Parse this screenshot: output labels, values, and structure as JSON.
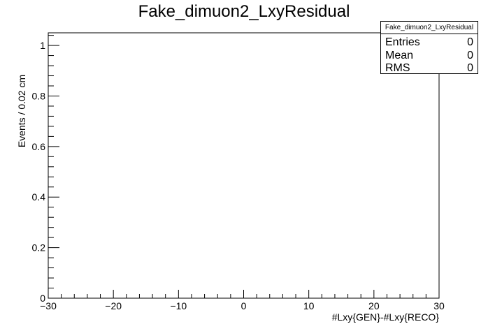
{
  "chart_data": {
    "type": "bar",
    "title": "Fake_dimuon2_LxyResidual",
    "xlabel": "#Lxy{GEN}-#Lxy{RECO}",
    "ylabel": "Events / 0.02 cm",
    "xlim": [
      -30,
      30
    ],
    "ylim": [
      0,
      1.05
    ],
    "xticks": [
      -30,
      -20,
      -10,
      0,
      10,
      20,
      30
    ],
    "xtick_labels": [
      "−30",
      "−20",
      "−10",
      "0",
      "10",
      "20",
      "30"
    ],
    "yticks": [
      0,
      0.2,
      0.4,
      0.6,
      0.8,
      1
    ],
    "ytick_labels": [
      "0",
      "0.2",
      "0.4",
      "0.6",
      "0.8",
      "1"
    ],
    "values": [],
    "grid": false,
    "legend": "none"
  },
  "stats": {
    "title": "Fake_dimuon2_LxyResidual",
    "rows": [
      {
        "key": "Entries",
        "value": "0"
      },
      {
        "key": "Mean",
        "value": "0"
      },
      {
        "key": "RMS",
        "value": "0"
      }
    ]
  }
}
